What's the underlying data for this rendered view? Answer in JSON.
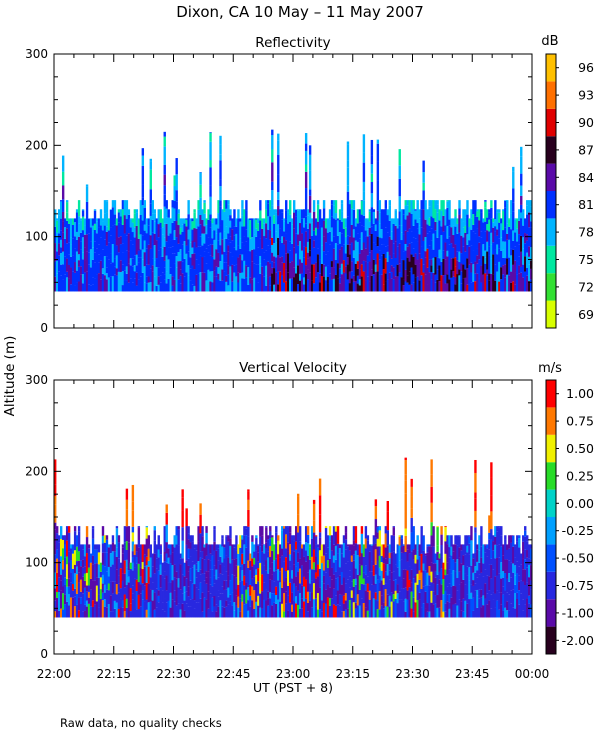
{
  "title": "Dixon, CA 10 May – 11 May 2007",
  "footnote": "Raw data, no quality checks",
  "y_axis_label": "Altitude (m)",
  "x_axis_label": "UT  (PST + 8)",
  "x_ticks": [
    "22:00",
    "22:15",
    "22:30",
    "22:45",
    "23:00",
    "23:15",
    "23:30",
    "23:45",
    "00:00"
  ],
  "chart_data": [
    {
      "type": "heatmap",
      "title": "Reflectivity",
      "ylabel": "Altitude (m)",
      "xlabel": "UT  (PST + 8)",
      "xlim": [
        "22:00",
        "00:00"
      ],
      "ylim": [
        0,
        300
      ],
      "y_ticks": [
        0,
        100,
        200,
        300
      ],
      "colorbar": {
        "unit": "dB",
        "levels": [
          69,
          72,
          75,
          78,
          81,
          84,
          87,
          90,
          93,
          96
        ],
        "labels": [
          "69",
          "72",
          "75",
          "78",
          "81",
          "84",
          "87",
          "90",
          "93",
          "96"
        ],
        "colors": [
          "#d8ff00",
          "#33e033",
          "#00e8a0",
          "#00b4ff",
          "#0030ff",
          "#5a0aa8",
          "#28001e",
          "#e00000",
          "#ff7000",
          "#ffc000"
        ]
      },
      "data_base_m": 40,
      "typical_echo_top_m": [
        120,
        140
      ],
      "max_spike_top_m": 220
    },
    {
      "type": "heatmap",
      "title": "Vertical Velocity",
      "ylabel": "Altitude (m)",
      "xlabel": "UT  (PST + 8)",
      "xlim": [
        "22:00",
        "00:00"
      ],
      "ylim": [
        0,
        300
      ],
      "y_ticks": [
        0,
        100,
        200,
        300
      ],
      "colorbar": {
        "unit": "m/s",
        "levels": [
          -2.0,
          -1.0,
          -0.75,
          -0.5,
          -0.25,
          0.0,
          0.25,
          0.5,
          0.75,
          1.0
        ],
        "labels": [
          "-2.00",
          "-1.00",
          "-0.75",
          "-0.50",
          "-0.25",
          "0.00",
          "0.25",
          "0.50",
          "0.75",
          "1.00"
        ],
        "colors": [
          "#28001e",
          "#5a0aa8",
          "#2828e0",
          "#0050ff",
          "#00a0ff",
          "#00d2c8",
          "#28dc28",
          "#f0f000",
          "#ff7800",
          "#ff0000"
        ]
      },
      "data_base_m": 40,
      "typical_echo_top_m": [
        120,
        140
      ],
      "max_spike_top_m": 220
    }
  ]
}
